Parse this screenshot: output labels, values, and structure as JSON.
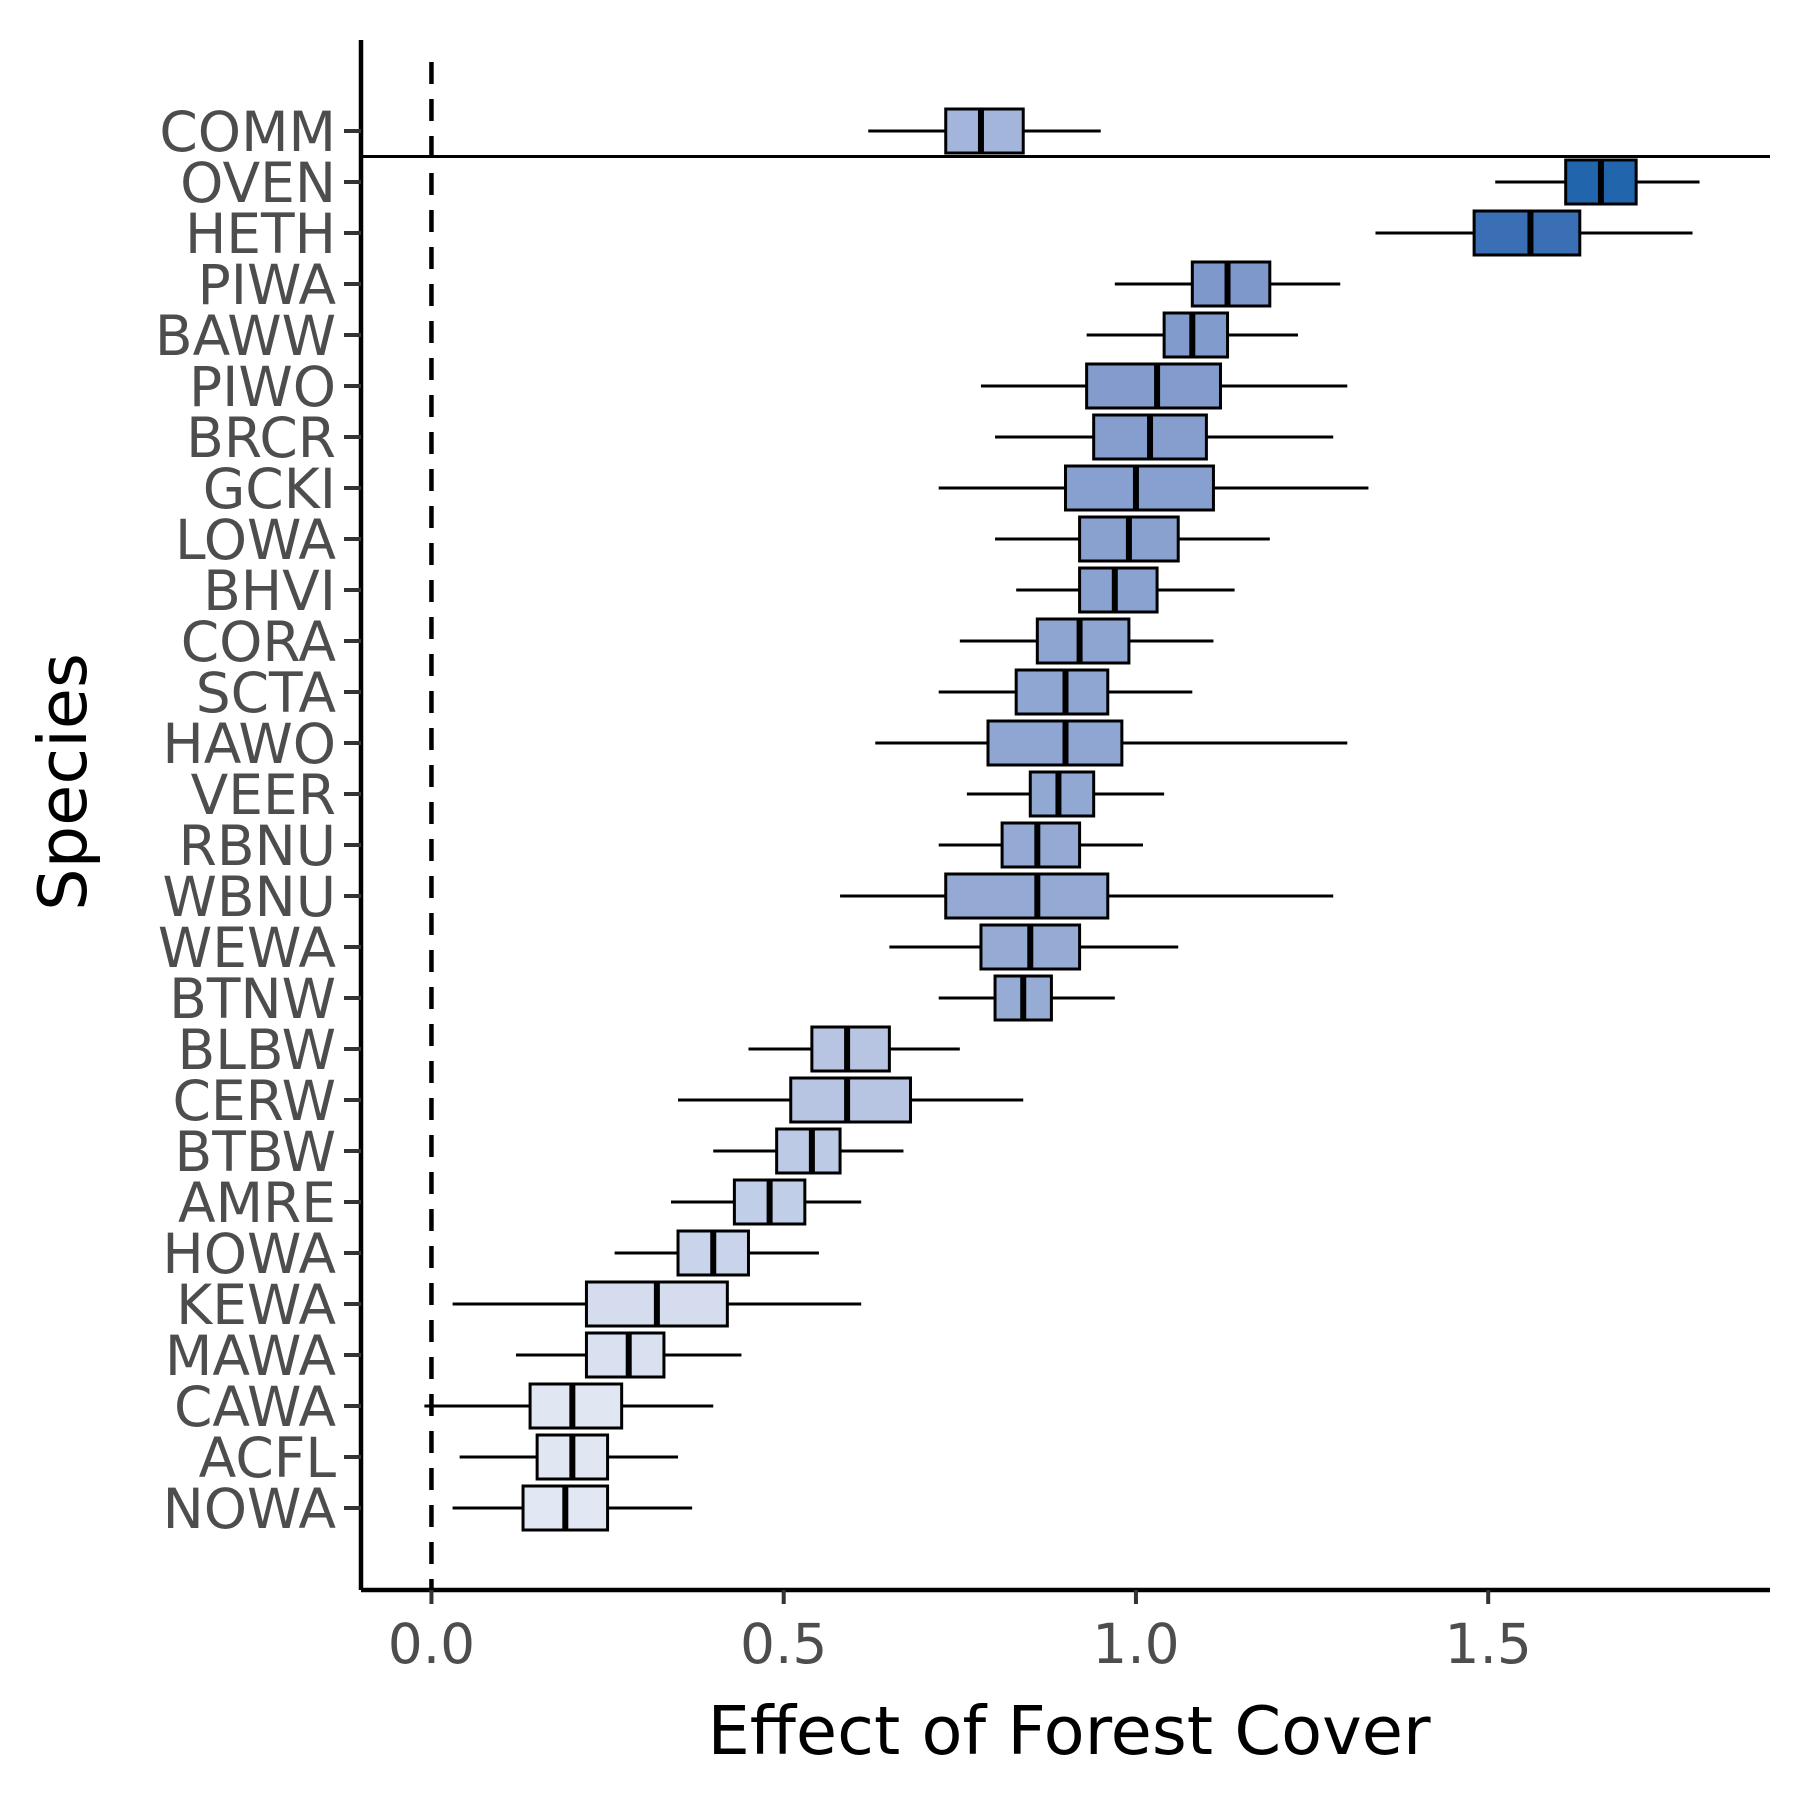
{
  "chart_data": {
    "type": "boxplot",
    "xlabel": "Effect of Forest Cover",
    "ylabel": "Species",
    "xlim": [
      -0.1,
      1.9
    ],
    "xticks": [
      0.0,
      0.5,
      1.0,
      1.5
    ],
    "xtick_labels": [
      "0.0",
      "0.5",
      "1.0",
      "1.5"
    ],
    "reference_line_x": 0.0,
    "grid": false,
    "legend": "none",
    "colors": {
      "high": "#2166ac",
      "mid": "#8fa5d3",
      "low": "#e9edf7",
      "outline": "#000000"
    },
    "species": [
      {
        "name": "COMM",
        "whisker_low": 0.62,
        "q1": 0.73,
        "median": 0.78,
        "q3": 0.84,
        "whisker_high": 0.95,
        "color": "#a4b5db"
      },
      {
        "name": "OVEN",
        "whisker_low": 1.51,
        "q1": 1.61,
        "median": 1.66,
        "q3": 1.71,
        "whisker_high": 1.8,
        "color": "#2166ac"
      },
      {
        "name": "HETH",
        "whisker_low": 1.34,
        "q1": 1.48,
        "median": 1.56,
        "q3": 1.63,
        "whisker_high": 1.79,
        "color": "#3a6fb6"
      },
      {
        "name": "PIWA",
        "whisker_low": 0.97,
        "q1": 1.08,
        "median": 1.13,
        "q3": 1.19,
        "whisker_high": 1.29,
        "color": "#7e98cb"
      },
      {
        "name": "BAWW",
        "whisker_low": 0.93,
        "q1": 1.04,
        "median": 1.08,
        "q3": 1.13,
        "whisker_high": 1.23,
        "color": "#829bcd"
      },
      {
        "name": "PIWO",
        "whisker_low": 0.78,
        "q1": 0.93,
        "median": 1.03,
        "q3": 1.12,
        "whisker_high": 1.3,
        "color": "#839ccd"
      },
      {
        "name": "BRCR",
        "whisker_low": 0.8,
        "q1": 0.94,
        "median": 1.02,
        "q3": 1.1,
        "whisker_high": 1.28,
        "color": "#859ece"
      },
      {
        "name": "GCKI",
        "whisker_low": 0.72,
        "q1": 0.9,
        "median": 1.0,
        "q3": 1.11,
        "whisker_high": 1.33,
        "color": "#87a0cf"
      },
      {
        "name": "LOWA",
        "whisker_low": 0.8,
        "q1": 0.92,
        "median": 0.99,
        "q3": 1.06,
        "whisker_high": 1.19,
        "color": "#89a1cf"
      },
      {
        "name": "BHVI",
        "whisker_low": 0.83,
        "q1": 0.92,
        "median": 0.97,
        "q3": 1.03,
        "whisker_high": 1.14,
        "color": "#8aa2d0"
      },
      {
        "name": "CORA",
        "whisker_low": 0.75,
        "q1": 0.86,
        "median": 0.92,
        "q3": 0.99,
        "whisker_high": 1.11,
        "color": "#8ea5d1"
      },
      {
        "name": "SCTA",
        "whisker_low": 0.72,
        "q1": 0.83,
        "median": 0.9,
        "q3": 0.96,
        "whisker_high": 1.08,
        "color": "#90a6d2"
      },
      {
        "name": "HAWO",
        "whisker_low": 0.63,
        "q1": 0.79,
        "median": 0.9,
        "q3": 0.98,
        "whisker_high": 1.3,
        "color": "#90a6d2"
      },
      {
        "name": "VEER",
        "whisker_low": 0.76,
        "q1": 0.85,
        "median": 0.89,
        "q3": 0.94,
        "whisker_high": 1.04,
        "color": "#91a8d3"
      },
      {
        "name": "RBNU",
        "whisker_low": 0.72,
        "q1": 0.81,
        "median": 0.86,
        "q3": 0.92,
        "whisker_high": 1.01,
        "color": "#94aad4"
      },
      {
        "name": "WBNU",
        "whisker_low": 0.58,
        "q1": 0.73,
        "median": 0.86,
        "q3": 0.96,
        "whisker_high": 1.28,
        "color": "#94aad4"
      },
      {
        "name": "WEWA",
        "whisker_low": 0.65,
        "q1": 0.78,
        "median": 0.85,
        "q3": 0.92,
        "whisker_high": 1.06,
        "color": "#95abd4"
      },
      {
        "name": "BTNW",
        "whisker_low": 0.72,
        "q1": 0.8,
        "median": 0.84,
        "q3": 0.88,
        "whisker_high": 0.97,
        "color": "#96acd5"
      },
      {
        "name": "BLBW",
        "whisker_low": 0.45,
        "q1": 0.54,
        "median": 0.59,
        "q3": 0.65,
        "whisker_high": 0.75,
        "color": "#b7c5e3"
      },
      {
        "name": "CERW",
        "whisker_low": 0.35,
        "q1": 0.51,
        "median": 0.59,
        "q3": 0.68,
        "whisker_high": 0.84,
        "color": "#b7c5e3"
      },
      {
        "name": "BTBW",
        "whisker_low": 0.4,
        "q1": 0.49,
        "median": 0.54,
        "q3": 0.58,
        "whisker_high": 0.67,
        "color": "#bccae5"
      },
      {
        "name": "AMRE",
        "whisker_low": 0.34,
        "q1": 0.43,
        "median": 0.48,
        "q3": 0.53,
        "whisker_high": 0.61,
        "color": "#c1cee7"
      },
      {
        "name": "HOWA",
        "whisker_low": 0.26,
        "q1": 0.35,
        "median": 0.4,
        "q3": 0.45,
        "whisker_high": 0.55,
        "color": "#c9d4ea"
      },
      {
        "name": "KEWA",
        "whisker_low": 0.03,
        "q1": 0.22,
        "median": 0.32,
        "q3": 0.42,
        "whisker_high": 0.61,
        "color": "#d4dcee"
      },
      {
        "name": "MAWA",
        "whisker_low": 0.12,
        "q1": 0.22,
        "median": 0.28,
        "q3": 0.33,
        "whisker_high": 0.44,
        "color": "#d9e0f0"
      },
      {
        "name": "CAWA",
        "whisker_low": -0.01,
        "q1": 0.14,
        "median": 0.2,
        "q3": 0.27,
        "whisker_high": 0.4,
        "color": "#e0e6f2"
      },
      {
        "name": "ACFL",
        "whisker_low": 0.04,
        "q1": 0.15,
        "median": 0.2,
        "q3": 0.25,
        "whisker_high": 0.35,
        "color": "#e0e6f2"
      },
      {
        "name": "NOWA",
        "whisker_low": 0.03,
        "q1": 0.13,
        "median": 0.19,
        "q3": 0.25,
        "whisker_high": 0.37,
        "color": "#e1e7f3"
      }
    ]
  }
}
